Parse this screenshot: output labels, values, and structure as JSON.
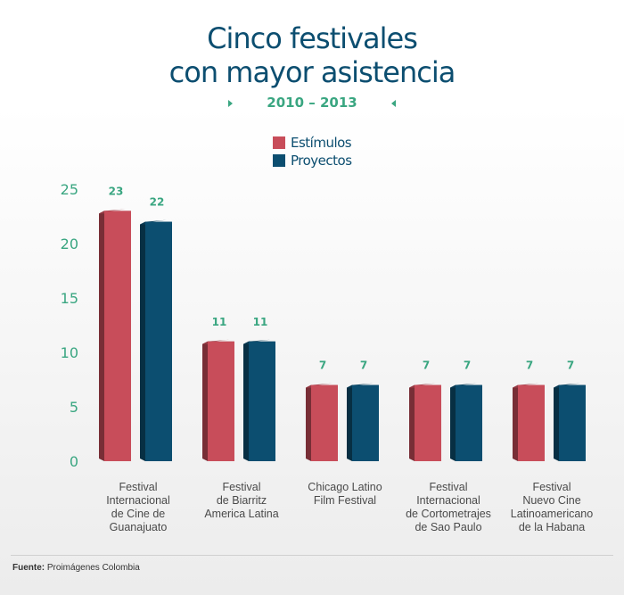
{
  "title_line1": "Cinco festivales",
  "title_line2": "con mayor asistencia",
  "subtitle": "2010 – 2013",
  "source_label": "Fuente:",
  "source_text": "Proimágenes Colombia",
  "colors": {
    "estimulos": "#c84d5a",
    "proyectos": "#0c4e70",
    "accent": "#3aa681",
    "title": "#0c4e70"
  },
  "chart_data": {
    "type": "bar",
    "categories": [
      "Festival Internacional de Cine de Guanajuato",
      "Festival de Biarritz America Latina",
      "Chicago Latino Film Festival",
      "Festival Internacional de Cortometrajes de Sao Paulo",
      "Festival Nuevo Cine Latinoamericano de la Habana"
    ],
    "category_lines": [
      [
        "Festival",
        "Internacional",
        "de Cine de",
        "Guanajuato"
      ],
      [
        "Festival",
        "de Biarritz",
        "America Latina"
      ],
      [
        "Chicago Latino",
        "Film Festival"
      ],
      [
        "Festival",
        "Internacional",
        "de Cortometrajes",
        "de Sao Paulo"
      ],
      [
        "Festival",
        "Nuevo Cine",
        "Latinoamericano",
        "de la Habana"
      ]
    ],
    "series": [
      {
        "name": "Estímulos",
        "values": [
          23,
          11,
          7,
          7,
          7
        ]
      },
      {
        "name": "Proyectos",
        "values": [
          22,
          11,
          7,
          7,
          7
        ]
      }
    ],
    "ylim": [
      0,
      25
    ],
    "yticks": [
      0,
      5,
      10,
      15,
      20,
      25
    ],
    "legend": "top-center",
    "grid": false
  }
}
